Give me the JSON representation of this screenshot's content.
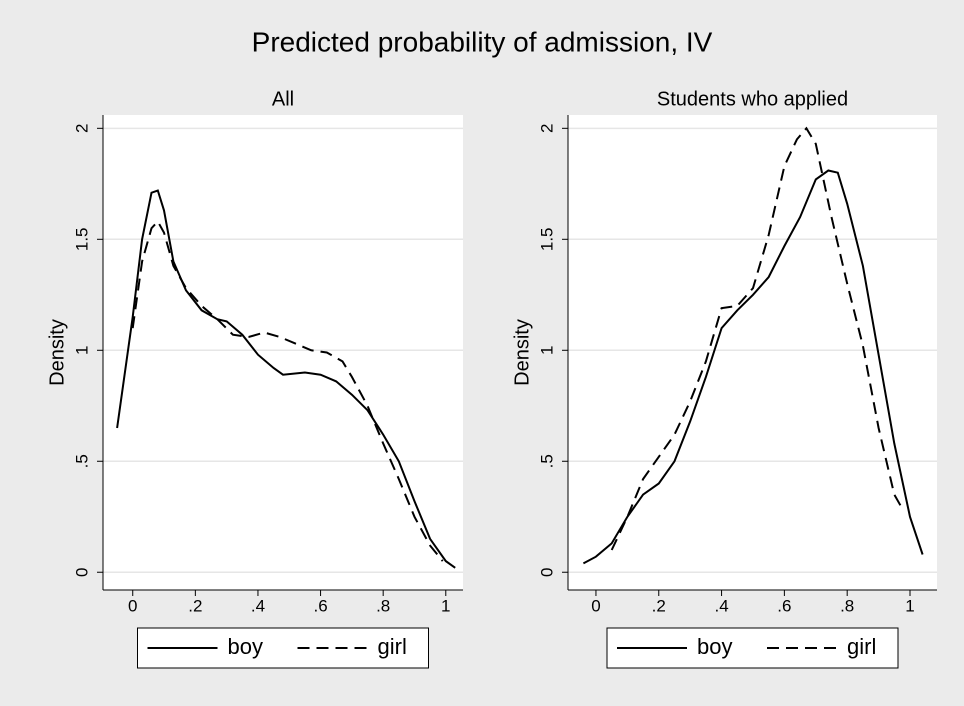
{
  "title": "Predicted probability of admission, IV",
  "chart_data": [
    {
      "type": "line",
      "title": "All",
      "y_label": "Density",
      "xlim": [
        -0.095,
        1.055
      ],
      "ylim": [
        -0.08,
        2.06
      ],
      "xticks": [
        0,
        {
          "value": 0.2,
          "label": ".2"
        },
        {
          "value": 0.4,
          "label": ".4"
        },
        {
          "value": 0.6,
          "label": ".6"
        },
        {
          "value": 0.8,
          "label": ".8"
        },
        1
      ],
      "yticks": [
        0,
        {
          "value": 0.5,
          "label": ".5"
        },
        1,
        1.5,
        2
      ],
      "grid": true,
      "legend": "bottom",
      "series": [
        {
          "name": "boy",
          "color": "#000000",
          "line_style": "solid",
          "x": [
            -0.05,
            0.0,
            0.03,
            0.06,
            0.08,
            0.1,
            0.13,
            0.17,
            0.22,
            0.27,
            0.3,
            0.35,
            0.4,
            0.45,
            0.48,
            0.55,
            0.6,
            0.65,
            0.7,
            0.75,
            0.8,
            0.85,
            0.9,
            0.95,
            1.0,
            1.03
          ],
          "values": [
            0.65,
            1.15,
            1.5,
            1.71,
            1.72,
            1.63,
            1.4,
            1.27,
            1.18,
            1.14,
            1.13,
            1.07,
            0.98,
            0.92,
            0.89,
            0.9,
            0.89,
            0.86,
            0.8,
            0.73,
            0.62,
            0.5,
            0.32,
            0.15,
            0.05,
            0.02
          ]
        },
        {
          "name": "girl",
          "color": "#000000",
          "line_style": "dashed",
          "x": [
            0.0,
            0.03,
            0.06,
            0.08,
            0.1,
            0.13,
            0.17,
            0.22,
            0.27,
            0.32,
            0.37,
            0.42,
            0.47,
            0.52,
            0.57,
            0.62,
            0.67,
            0.7,
            0.75,
            0.8,
            0.85,
            0.9,
            0.95,
            0.99
          ],
          "values": [
            1.1,
            1.4,
            1.55,
            1.58,
            1.53,
            1.38,
            1.28,
            1.2,
            1.14,
            1.07,
            1.06,
            1.08,
            1.06,
            1.03,
            1.0,
            0.99,
            0.95,
            0.88,
            0.75,
            0.58,
            0.42,
            0.25,
            0.12,
            0.05
          ]
        }
      ]
    },
    {
      "type": "line",
      "title": "Students who applied",
      "y_label": "Density",
      "xlim": [
        -0.089,
        1.086
      ],
      "ylim": [
        -0.08,
        2.06
      ],
      "xticks": [
        0,
        {
          "value": 0.2,
          "label": ".2"
        },
        {
          "value": 0.4,
          "label": ".4"
        },
        {
          "value": 0.6,
          "label": ".6"
        },
        {
          "value": 0.8,
          "label": ".8"
        },
        1
      ],
      "yticks": [
        0,
        {
          "value": 0.5,
          "label": ".5"
        },
        1,
        1.5,
        2
      ],
      "grid": true,
      "legend": "bottom",
      "series": [
        {
          "name": "boy",
          "color": "#000000",
          "line_style": "solid",
          "x": [
            -0.04,
            0.0,
            0.05,
            0.1,
            0.15,
            0.2,
            0.25,
            0.3,
            0.35,
            0.4,
            0.45,
            0.5,
            0.55,
            0.6,
            0.65,
            0.7,
            0.74,
            0.77,
            0.8,
            0.85,
            0.9,
            0.95,
            1.0,
            1.04
          ],
          "values": [
            0.04,
            0.07,
            0.13,
            0.25,
            0.35,
            0.4,
            0.5,
            0.68,
            0.88,
            1.1,
            1.18,
            1.25,
            1.33,
            1.47,
            1.6,
            1.77,
            1.81,
            1.8,
            1.66,
            1.38,
            0.98,
            0.58,
            0.25,
            0.08
          ]
        },
        {
          "name": "girl",
          "color": "#000000",
          "line_style": "dashed",
          "x": [
            0.05,
            0.1,
            0.15,
            0.2,
            0.25,
            0.3,
            0.35,
            0.4,
            0.45,
            0.5,
            0.55,
            0.6,
            0.64,
            0.67,
            0.7,
            0.75,
            0.8,
            0.85,
            0.9,
            0.95,
            0.97
          ],
          "values": [
            0.1,
            0.25,
            0.42,
            0.52,
            0.62,
            0.77,
            0.95,
            1.19,
            1.2,
            1.28,
            1.52,
            1.83,
            1.95,
            2.0,
            1.93,
            1.6,
            1.3,
            1.02,
            0.65,
            0.35,
            0.3
          ]
        }
      ]
    }
  ]
}
